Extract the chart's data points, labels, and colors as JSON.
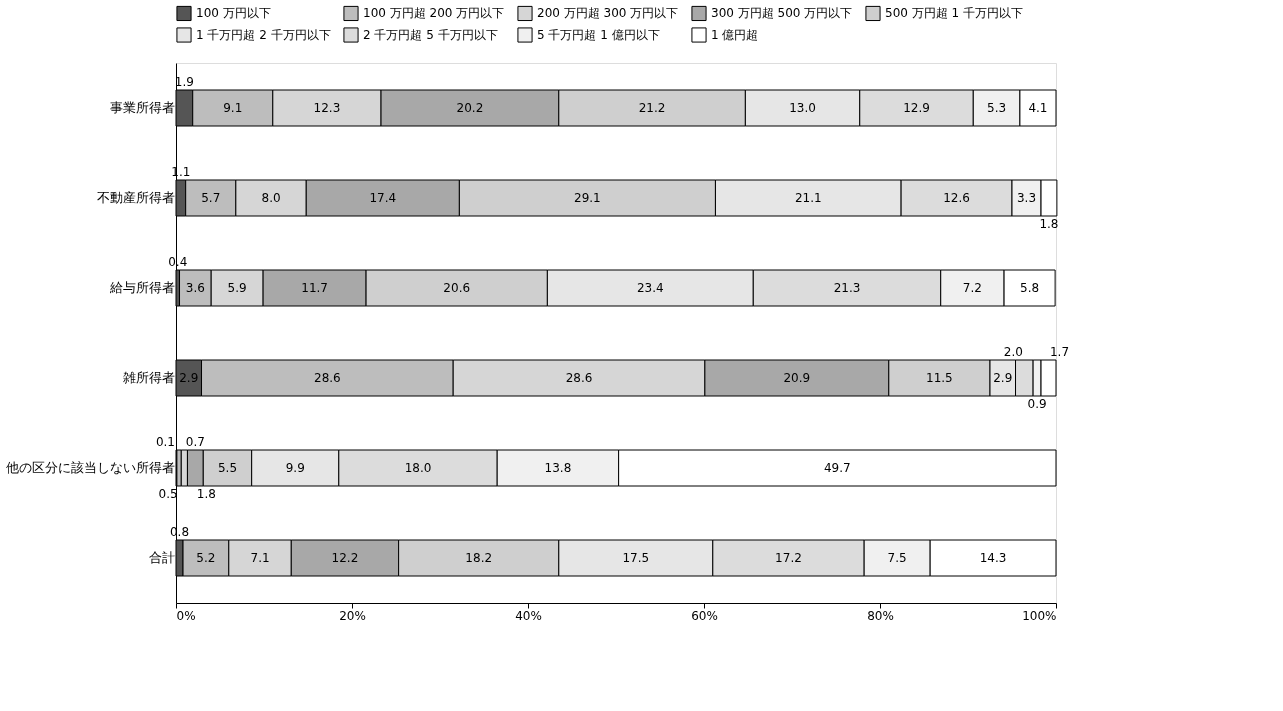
{
  "chart_data": {
    "type": "bar",
    "orientation": "horizontal",
    "stacked": true,
    "categories": [
      "事業所得者",
      "不動産所得者",
      "給与所得者",
      "雑所得者",
      "他の区分に該当しない所得者",
      "合計"
    ],
    "series": [
      {
        "name": "100 万円以下",
        "color": "#555555",
        "values": [
          1.9,
          1.1,
          0.4,
          2.9,
          0.1,
          0.8
        ],
        "value_labels": [
          "1.9",
          "1.1",
          "0.4",
          "2.9",
          "0.1",
          "0.8"
        ]
      },
      {
        "name": "100 万円超 200 万円以下",
        "color": "#bdbdbd",
        "values": [
          9.1,
          5.7,
          3.6,
          28.6,
          0.5,
          5.2
        ],
        "value_labels": [
          "9.1",
          "5.7",
          "3.6",
          "28.6",
          "0.5",
          "5.2"
        ]
      },
      {
        "name": "200 万円超 300 万円以下",
        "color": "#d6d6d6",
        "values": [
          12.3,
          8.0,
          5.9,
          28.6,
          0.7,
          7.1
        ],
        "value_labels": [
          "12.3",
          "8.0",
          "5.9",
          "28.6",
          "0.7",
          "7.1"
        ]
      },
      {
        "name": "300 万円超 500 万円以下",
        "color": "#a8a8a8",
        "values": [
          20.2,
          17.4,
          11.7,
          20.9,
          1.8,
          12.2
        ],
        "value_labels": [
          "20.2",
          "17.4",
          "11.7",
          "20.9",
          "1.8",
          "12.2"
        ]
      },
      {
        "name": "500 万円超 1 千万円以下",
        "color": "#cfcfcf",
        "values": [
          21.2,
          29.1,
          20.6,
          11.5,
          5.5,
          18.2
        ],
        "value_labels": [
          "21.2",
          "29.1",
          "20.6",
          "11.5",
          "5.5",
          "18.2"
        ]
      },
      {
        "name": "1 千万円超 2 千万円以下",
        "color": "#e6e6e6",
        "values": [
          13.0,
          21.1,
          23.4,
          2.9,
          9.9,
          17.5
        ],
        "value_labels": [
          "13.0",
          "21.1",
          "23.4",
          "2.9",
          "9.9",
          "17.5"
        ]
      },
      {
        "name": "2 千万円超 5 千万円以下",
        "color": "#dcdcdc",
        "values": [
          12.9,
          12.6,
          21.3,
          2.0,
          18.0,
          17.2
        ],
        "value_labels": [
          "12.9",
          "12.6",
          "21.3",
          "2.0",
          "18.0",
          "17.2"
        ]
      },
      {
        "name": "5 千万円超 1 億円以下",
        "color": "#f0f0f0",
        "values": [
          5.3,
          3.3,
          7.2,
          0.9,
          13.8,
          7.5
        ],
        "value_labels": [
          "5.3",
          "3.3",
          "7.2",
          "0.9",
          "13.8",
          "7.5"
        ]
      },
      {
        "name": "1 億円超",
        "color": "#ffffff",
        "values": [
          4.1,
          1.8,
          5.8,
          1.7,
          49.7,
          14.3
        ],
        "value_labels": [
          "4.1",
          "1.8",
          "5.8",
          "1.7",
          "49.7",
          "14.3"
        ]
      }
    ],
    "xlim": [
      0,
      100
    ],
    "xticks": [
      {
        "value": 0,
        "label": "0%"
      },
      {
        "value": 20,
        "label": "20%"
      },
      {
        "value": 40,
        "label": "40%"
      },
      {
        "value": 60,
        "label": "60%"
      },
      {
        "value": 80,
        "label": "80%"
      },
      {
        "value": 100,
        "label": "100%"
      }
    ],
    "legend": "top",
    "grid": false
  }
}
